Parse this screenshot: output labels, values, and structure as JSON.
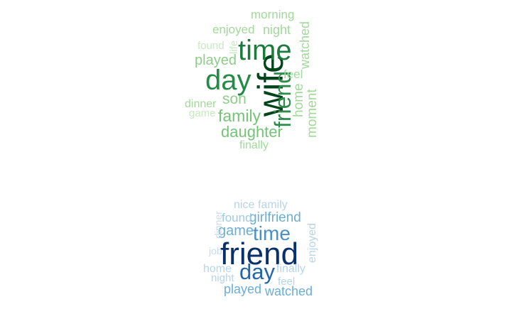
{
  "clouds": [
    {
      "name": "green",
      "palette": "greens",
      "words": [
        {
          "text": "wife",
          "color": "#00441b"
        },
        {
          "text": "time",
          "color": "#1b7a3c"
        },
        {
          "text": "day",
          "color": "#238b45"
        },
        {
          "text": "friend",
          "color": "#2e8b4a"
        },
        {
          "text": "family",
          "color": "#74c476"
        },
        {
          "text": "daughter",
          "color": "#74c476"
        },
        {
          "text": "son",
          "color": "#8ccd8a"
        },
        {
          "text": "played",
          "color": "#8ccd8a"
        },
        {
          "text": "home",
          "color": "#a1d99b"
        },
        {
          "text": "moment",
          "color": "#a1d99b"
        },
        {
          "text": "feel",
          "color": "#a1d99b"
        },
        {
          "text": "watched",
          "color": "#a1d99b"
        },
        {
          "text": "night",
          "color": "#a1d99b"
        },
        {
          "text": "enjoyed",
          "color": "#a1d99b"
        },
        {
          "text": "morning",
          "color": "#a1d99b"
        },
        {
          "text": "finally",
          "color": "#a1d99b"
        },
        {
          "text": "dinner",
          "color": "#a1d99b"
        },
        {
          "text": "found",
          "color": "#c7e9c0"
        },
        {
          "text": "life",
          "color": "#c7e9c0"
        },
        {
          "text": "game",
          "color": "#c7e9c0"
        }
      ]
    },
    {
      "name": "blue",
      "palette": "blues",
      "words": [
        {
          "text": "friend",
          "color": "#08306b"
        },
        {
          "text": "day",
          "color": "#2166ac"
        },
        {
          "text": "time",
          "color": "#4a90c8"
        },
        {
          "text": "game",
          "color": "#6baed6"
        },
        {
          "text": "girlfriend",
          "color": "#6baed6"
        },
        {
          "text": "played",
          "color": "#6baed6"
        },
        {
          "text": "watched",
          "color": "#6baed6"
        },
        {
          "text": "found",
          "color": "#9ecae1"
        },
        {
          "text": "nice",
          "color": "#b7d4ea"
        },
        {
          "text": "family",
          "color": "#b7d4ea"
        },
        {
          "text": "enjoyed",
          "color": "#b7d4ea"
        },
        {
          "text": "home",
          "color": "#b7d4ea"
        },
        {
          "text": "night",
          "color": "#b7d4ea"
        },
        {
          "text": "finally",
          "color": "#b7d4ea"
        },
        {
          "text": "feel",
          "color": "#b7d4ea"
        },
        {
          "text": "job",
          "color": "#c6dbef"
        },
        {
          "text": "dinner",
          "color": "#c6dbef"
        }
      ]
    }
  ]
}
